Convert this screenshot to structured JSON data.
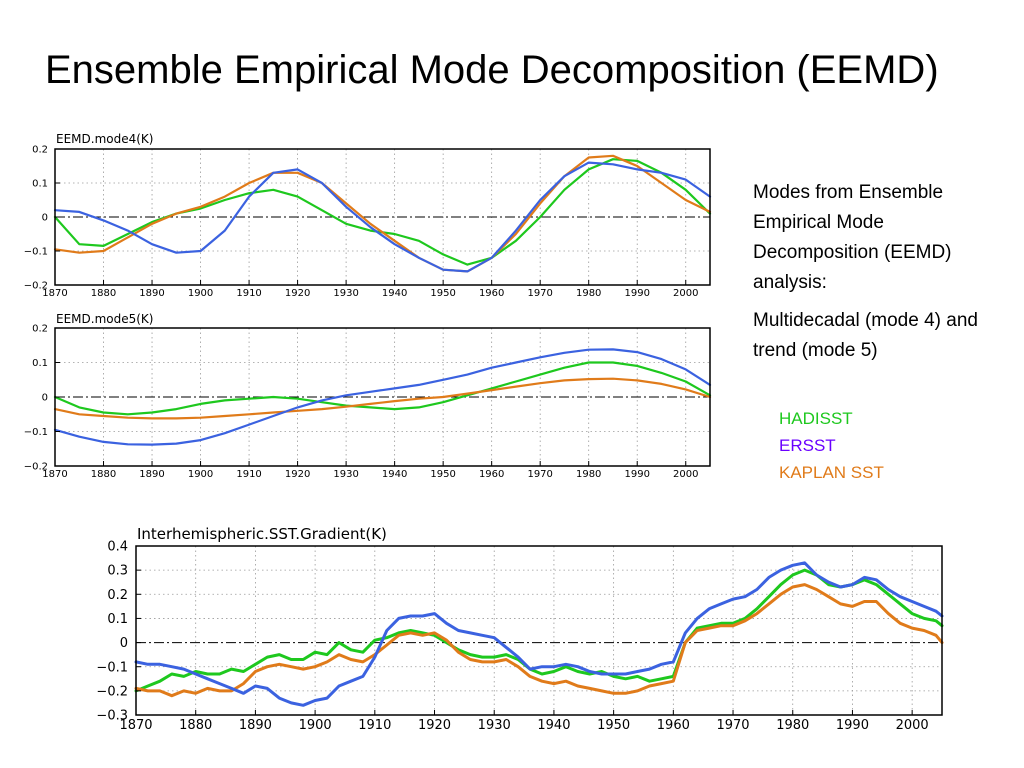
{
  "slide": {
    "title": "Ensemble Empirical Mode Decomposition (EEMD)",
    "description": "Modes from Ensemble Empirical Mode Decomposition (EEMD) analysis:",
    "note": "Multidecadal (mode 4) and trend (mode 5)"
  },
  "legend": [
    {
      "label": "HADISST",
      "color": "#1ec81e"
    },
    {
      "label": "ERSST",
      "color": "#6a00ff"
    },
    {
      "label": "KAPLAN SST",
      "color": "#e07b1a"
    }
  ],
  "chart_data": [
    {
      "type": "line",
      "title": "EEMD.mode4(K)",
      "xlim": [
        1870,
        2005
      ],
      "ylim": [
        -0.2,
        0.2
      ],
      "xticks": [
        1870,
        1880,
        1890,
        1900,
        1910,
        1920,
        1930,
        1940,
        1950,
        1960,
        1970,
        1980,
        1990,
        2000
      ],
      "yticks": [
        -0.2,
        -0.1,
        0,
        0.1,
        0.2
      ],
      "ytick_labels": [
        "−0.2",
        "−0.1",
        "0",
        "0.1",
        "0.2"
      ],
      "grid": true,
      "x": [
        1870,
        1875,
        1880,
        1885,
        1890,
        1895,
        1900,
        1905,
        1910,
        1915,
        1920,
        1925,
        1930,
        1935,
        1940,
        1945,
        1950,
        1955,
        1960,
        1965,
        1970,
        1975,
        1980,
        1985,
        1990,
        1995,
        2000,
        2005
      ],
      "series": [
        {
          "color": "#1ec81e",
          "values": [
            0.0,
            -0.08,
            -0.085,
            -0.05,
            -0.015,
            0.01,
            0.025,
            0.05,
            0.07,
            0.08,
            0.06,
            0.02,
            -0.02,
            -0.04,
            -0.05,
            -0.07,
            -0.11,
            -0.14,
            -0.12,
            -0.07,
            0.0,
            0.08,
            0.14,
            0.17,
            0.165,
            0.13,
            0.08,
            0.01
          ]
        },
        {
          "color": "#e07b1a",
          "values": [
            -0.095,
            -0.105,
            -0.1,
            -0.06,
            -0.02,
            0.01,
            0.03,
            0.06,
            0.1,
            0.13,
            0.13,
            0.1,
            0.04,
            -0.02,
            -0.07,
            -0.12,
            -0.155,
            -0.16,
            -0.12,
            -0.05,
            0.04,
            0.12,
            0.175,
            0.18,
            0.15,
            0.1,
            0.05,
            0.015
          ]
        },
        {
          "color": "#3b62e0",
          "values": [
            0.02,
            0.015,
            -0.01,
            -0.04,
            -0.08,
            -0.105,
            -0.1,
            -0.04,
            0.06,
            0.13,
            0.14,
            0.1,
            0.03,
            -0.03,
            -0.08,
            -0.12,
            -0.155,
            -0.16,
            -0.12,
            -0.04,
            0.05,
            0.12,
            0.16,
            0.155,
            0.14,
            0.13,
            0.11,
            0.06
          ]
        }
      ]
    },
    {
      "type": "line",
      "title": "EEMD.mode5(K)",
      "xlim": [
        1870,
        2005
      ],
      "ylim": [
        -0.2,
        0.2
      ],
      "xticks": [
        1870,
        1880,
        1890,
        1900,
        1910,
        1920,
        1930,
        1940,
        1950,
        1960,
        1970,
        1980,
        1990,
        2000
      ],
      "yticks": [
        -0.2,
        -0.1,
        0,
        0.1,
        0.2
      ],
      "ytick_labels": [
        "−0.2",
        "−0.1",
        "0",
        "0.1",
        "0.2"
      ],
      "grid": true,
      "x": [
        1870,
        1875,
        1880,
        1885,
        1890,
        1895,
        1900,
        1905,
        1910,
        1915,
        1920,
        1925,
        1930,
        1935,
        1940,
        1945,
        1950,
        1955,
        1960,
        1965,
        1970,
        1975,
        1980,
        1985,
        1990,
        1995,
        2000,
        2005
      ],
      "series": [
        {
          "color": "#1ec81e",
          "values": [
            0.0,
            -0.03,
            -0.045,
            -0.05,
            -0.045,
            -0.035,
            -0.02,
            -0.01,
            -0.005,
            0.0,
            -0.005,
            -0.015,
            -0.025,
            -0.03,
            -0.035,
            -0.03,
            -0.015,
            0.005,
            0.025,
            0.045,
            0.065,
            0.085,
            0.1,
            0.1,
            0.09,
            0.07,
            0.045,
            0.005
          ]
        },
        {
          "color": "#e07b1a",
          "values": [
            -0.035,
            -0.05,
            -0.055,
            -0.06,
            -0.062,
            -0.062,
            -0.06,
            -0.055,
            -0.05,
            -0.045,
            -0.04,
            -0.035,
            -0.028,
            -0.02,
            -0.012,
            -0.005,
            0.0,
            0.01,
            0.02,
            0.03,
            0.04,
            0.048,
            0.052,
            0.053,
            0.048,
            0.038,
            0.022,
            0.0
          ]
        },
        {
          "color": "#3b62e0",
          "values": [
            -0.095,
            -0.115,
            -0.13,
            -0.137,
            -0.138,
            -0.135,
            -0.125,
            -0.105,
            -0.08,
            -0.055,
            -0.03,
            -0.01,
            0.005,
            0.015,
            0.025,
            0.035,
            0.05,
            0.065,
            0.085,
            0.1,
            0.115,
            0.128,
            0.137,
            0.138,
            0.13,
            0.11,
            0.08,
            0.035
          ]
        }
      ]
    },
    {
      "type": "line",
      "title": "Interhemispheric.SST.Gradient(K)",
      "xlim": [
        1870,
        2005
      ],
      "ylim": [
        -0.3,
        0.4
      ],
      "xticks": [
        1870,
        1880,
        1890,
        1900,
        1910,
        1920,
        1930,
        1940,
        1950,
        1960,
        1970,
        1980,
        1990,
        2000
      ],
      "yticks": [
        -0.3,
        -0.2,
        -0.1,
        0,
        0.1,
        0.2,
        0.3,
        0.4
      ],
      "ytick_labels": [
        "−0.3",
        "−0.2",
        "−0.1",
        "0",
        "0.1",
        "0.2",
        "0.3",
        "0.4"
      ],
      "grid": true,
      "x": [
        1870,
        1872,
        1874,
        1876,
        1878,
        1880,
        1882,
        1884,
        1886,
        1888,
        1890,
        1892,
        1894,
        1896,
        1898,
        1900,
        1902,
        1904,
        1906,
        1908,
        1910,
        1912,
        1914,
        1916,
        1918,
        1920,
        1922,
        1924,
        1926,
        1928,
        1930,
        1932,
        1934,
        1936,
        1938,
        1940,
        1942,
        1944,
        1946,
        1948,
        1950,
        1952,
        1954,
        1956,
        1958,
        1960,
        1962,
        1964,
        1966,
        1968,
        1970,
        1972,
        1974,
        1976,
        1978,
        1980,
        1982,
        1984,
        1986,
        1988,
        1990,
        1992,
        1994,
        1996,
        1998,
        2000,
        2002,
        2004,
        2005
      ],
      "series": [
        {
          "color": "#1ec81e",
          "values": [
            -0.2,
            -0.18,
            -0.16,
            -0.13,
            -0.14,
            -0.12,
            -0.13,
            -0.13,
            -0.11,
            -0.12,
            -0.09,
            -0.06,
            -0.05,
            -0.07,
            -0.07,
            -0.04,
            -0.05,
            0.0,
            -0.03,
            -0.04,
            0.01,
            0.02,
            0.04,
            0.05,
            0.04,
            0.03,
            0.0,
            -0.03,
            -0.05,
            -0.06,
            -0.06,
            -0.05,
            -0.07,
            -0.11,
            -0.13,
            -0.12,
            -0.1,
            -0.12,
            -0.13,
            -0.12,
            -0.14,
            -0.15,
            -0.14,
            -0.16,
            -0.15,
            -0.14,
            0.0,
            0.06,
            0.07,
            0.08,
            0.08,
            0.1,
            0.14,
            0.19,
            0.24,
            0.28,
            0.3,
            0.28,
            0.24,
            0.23,
            0.24,
            0.26,
            0.24,
            0.2,
            0.16,
            0.12,
            0.1,
            0.09,
            0.07
          ]
        },
        {
          "color": "#e07b1a",
          "values": [
            -0.19,
            -0.2,
            -0.2,
            -0.22,
            -0.2,
            -0.21,
            -0.19,
            -0.2,
            -0.2,
            -0.17,
            -0.12,
            -0.1,
            -0.09,
            -0.1,
            -0.11,
            -0.1,
            -0.08,
            -0.05,
            -0.07,
            -0.08,
            -0.05,
            -0.01,
            0.03,
            0.04,
            0.03,
            0.04,
            0.01,
            -0.04,
            -0.07,
            -0.08,
            -0.08,
            -0.07,
            -0.1,
            -0.14,
            -0.16,
            -0.17,
            -0.16,
            -0.18,
            -0.19,
            -0.2,
            -0.21,
            -0.21,
            -0.2,
            -0.18,
            -0.17,
            -0.16,
            0.0,
            0.05,
            0.06,
            0.07,
            0.07,
            0.09,
            0.12,
            0.16,
            0.2,
            0.23,
            0.24,
            0.22,
            0.19,
            0.16,
            0.15,
            0.17,
            0.17,
            0.12,
            0.08,
            0.06,
            0.05,
            0.03,
            0.0
          ]
        },
        {
          "color": "#3b62e0",
          "values": [
            -0.08,
            -0.09,
            -0.09,
            -0.1,
            -0.11,
            -0.13,
            -0.15,
            -0.17,
            -0.19,
            -0.21,
            -0.18,
            -0.19,
            -0.23,
            -0.25,
            -0.26,
            -0.24,
            -0.23,
            -0.18,
            -0.16,
            -0.14,
            -0.06,
            0.05,
            0.1,
            0.11,
            0.11,
            0.12,
            0.08,
            0.05,
            0.04,
            0.03,
            0.02,
            -0.02,
            -0.06,
            -0.11,
            -0.1,
            -0.1,
            -0.09,
            -0.1,
            -0.12,
            -0.13,
            -0.13,
            -0.13,
            -0.12,
            -0.11,
            -0.09,
            -0.08,
            0.04,
            0.1,
            0.14,
            0.16,
            0.18,
            0.19,
            0.22,
            0.27,
            0.3,
            0.32,
            0.33,
            0.28,
            0.25,
            0.23,
            0.24,
            0.27,
            0.26,
            0.22,
            0.19,
            0.17,
            0.15,
            0.13,
            0.11
          ]
        }
      ]
    }
  ]
}
